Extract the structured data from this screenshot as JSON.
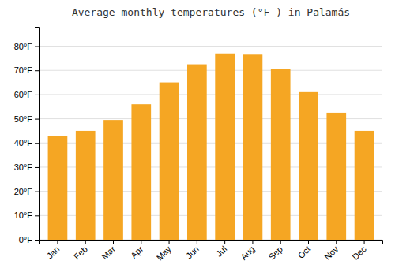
{
  "chart_data": {
    "type": "bar",
    "title": "Average monthly temperatures (°F ) in Palamás",
    "categories": [
      "Jan",
      "Feb",
      "Mar",
      "Apr",
      "May",
      "Jun",
      "Jul",
      "Aug",
      "Sep",
      "Oct",
      "Nov",
      "Dec"
    ],
    "values": [
      43,
      45,
      49.5,
      56,
      65,
      72.5,
      77,
      76.5,
      70.5,
      61,
      52.5,
      45
    ],
    "color": "#F5A623",
    "ylim": [
      0,
      88
    ],
    "yticks": [
      {
        "value": 0,
        "label": "0°F"
      },
      {
        "value": 10,
        "label": "10°F"
      },
      {
        "value": 20,
        "label": "20°F"
      },
      {
        "value": 30,
        "label": "30°F"
      },
      {
        "value": 40,
        "label": "40°F"
      },
      {
        "value": 50,
        "label": "50°F"
      },
      {
        "value": 60,
        "label": "60°F"
      },
      {
        "value": 70,
        "label": "70°F"
      },
      {
        "value": 80,
        "label": "80°F"
      }
    ],
    "grid": true
  }
}
